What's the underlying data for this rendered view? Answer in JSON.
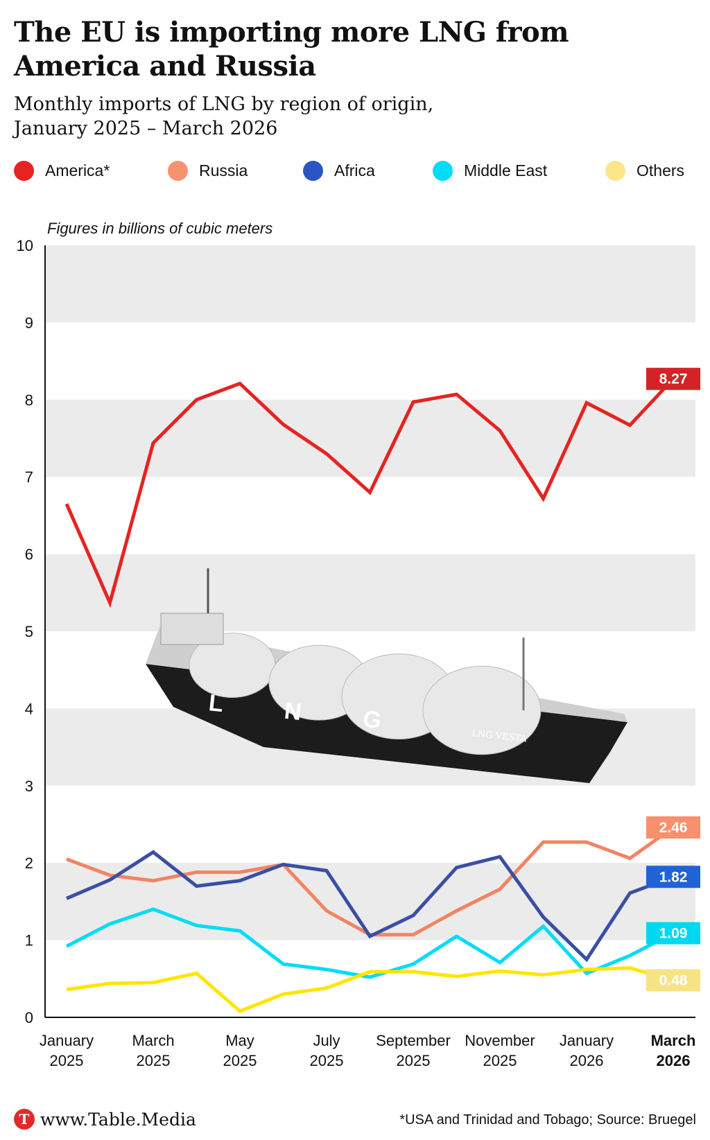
{
  "title": "The EU is importing more LNG from America and Russia",
  "subtitle_line1": "Monthly imports of LNG by region of origin,",
  "subtitle_line2": "January 2025 – March 2026",
  "footer": {
    "logo_letter": "T",
    "site": "www.Table.Media",
    "source": "*USA and Trinidad and Tobago; Source: Bruegel"
  },
  "chart_data": {
    "type": "line",
    "unit_note": "Figures in billions of cubic meters",
    "ylim": [
      0,
      10
    ],
    "yticks": [
      "0",
      "1",
      "2",
      "3",
      "4",
      "5",
      "6",
      "7",
      "8",
      "9",
      "10"
    ],
    "x": [
      "Jan 2025",
      "Feb 2025",
      "Mar 2025",
      "Apr 2025",
      "May 2025",
      "Jun 2025",
      "Jul 2025",
      "Aug 2025",
      "Sep 2025",
      "Oct 2025",
      "Nov 2025",
      "Dec 2025",
      "Jan 2026",
      "Feb 2026",
      "Mar 2026"
    ],
    "xtick_labels": [
      {
        "index": 0,
        "line1": "January",
        "line2": "2025"
      },
      {
        "index": 2,
        "line1": "March",
        "line2": "2025"
      },
      {
        "index": 4,
        "line1": "May",
        "line2": "2025"
      },
      {
        "index": 6,
        "line1": "July",
        "line2": "2025"
      },
      {
        "index": 8,
        "line1": "September",
        "line2": "2025"
      },
      {
        "index": 10,
        "line1": "November",
        "line2": "2025"
      },
      {
        "index": 12,
        "line1": "January",
        "line2": "2026"
      },
      {
        "index": 14,
        "line1": "March",
        "line2": "2026",
        "bold": true
      }
    ],
    "grid": "alternating horizontal bands",
    "legend_position": "top",
    "series": [
      {
        "name": "America*",
        "color": "#e52421",
        "label_color": "#d42326",
        "end_label": "8.27",
        "values": [
          6.65,
          5.37,
          7.44,
          8.0,
          8.21,
          7.68,
          7.3,
          6.8,
          7.97,
          8.07,
          7.6,
          6.72,
          7.96,
          7.67,
          8.27
        ]
      },
      {
        "name": "Russia",
        "color": "#f28462",
        "label_color": "#f7906d",
        "end_label": "2.46",
        "values": [
          2.05,
          1.84,
          1.77,
          1.88,
          1.88,
          1.98,
          1.38,
          1.07,
          1.07,
          1.38,
          1.66,
          2.27,
          2.27,
          2.06,
          2.46
        ]
      },
      {
        "name": "Africa",
        "color": "#3a4fa3",
        "label_color": "#1f63d6",
        "end_label": "1.82",
        "values": [
          1.54,
          1.78,
          2.14,
          1.7,
          1.77,
          1.98,
          1.9,
          1.05,
          1.32,
          1.94,
          2.08,
          1.3,
          0.75,
          1.61,
          1.82
        ]
      },
      {
        "name": "Middle East",
        "color": "#00dcf5",
        "label_color": "#00d8f2",
        "end_label": "1.09",
        "values": [
          0.92,
          1.21,
          1.4,
          1.19,
          1.12,
          0.69,
          0.62,
          0.52,
          0.69,
          1.05,
          0.71,
          1.18,
          0.57,
          0.8,
          1.09
        ]
      },
      {
        "name": "Others",
        "color": "#ffe500",
        "label_color": "#f8e384",
        "end_label": "0.48",
        "values": [
          0.36,
          0.44,
          0.45,
          0.57,
          0.08,
          0.3,
          0.38,
          0.59,
          0.59,
          0.53,
          0.6,
          0.55,
          0.62,
          0.64,
          0.48
        ]
      }
    ]
  },
  "ship_name": "LNG VESTA",
  "ship_hull_text": "L N G"
}
